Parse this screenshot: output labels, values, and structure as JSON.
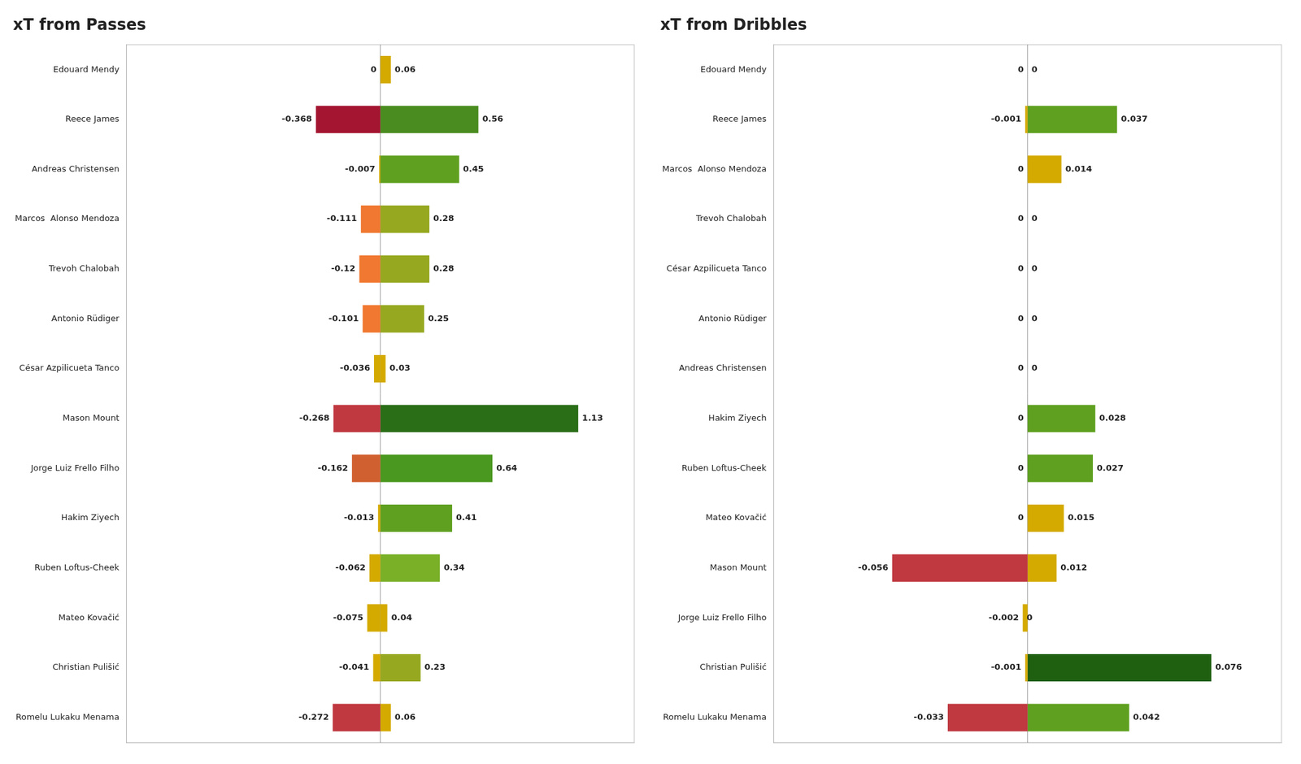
{
  "chart_data": [
    {
      "type": "bar",
      "title": "xT from Passes",
      "orientation": "horizontal",
      "stacked": true,
      "grid": false,
      "data_labels": true,
      "tick_labels": "y",
      "categories": [
        "Edouard Mendy",
        "Reece James",
        "Andreas Christensen",
        "Marcos  Alonso Mendoza",
        "Trevoh Chalobah",
        "Antonio Rüdiger",
        "César Azpilicueta Tanco",
        "Mason Mount",
        "Jorge Luiz Frello Filho",
        "Hakim Ziyech",
        "Ruben Loftus-Cheek",
        "Mateo Kovačić",
        "Christian Pulišić",
        "Romelu Lukaku Menama"
      ],
      "series": [
        {
          "values": [
            0,
            -0.368,
            -0.007,
            -0.111,
            -0.12,
            -0.101,
            -0.036,
            -0.268,
            -0.162,
            -0.013,
            -0.062,
            -0.075,
            -0.041,
            -0.272
          ],
          "colors": [
            "#d4aa00",
            "#a31530",
            "#d4aa00",
            "#f07830",
            "#f07830",
            "#f07830",
            "#d4aa00",
            "#c03840",
            "#d06030",
            "#d4aa00",
            "#d4aa00",
            "#d4aa00",
            "#d4aa00",
            "#c03840"
          ]
        },
        {
          "values": [
            0.06,
            0.56,
            0.45,
            0.28,
            0.28,
            0.25,
            0.03,
            1.13,
            0.64,
            0.41,
            0.34,
            0.04,
            0.23,
            0.06
          ],
          "colors": [
            "#d4aa00",
            "#4a8c20",
            "#5fa020",
            "#96a820",
            "#96a820",
            "#96a820",
            "#d4aa00",
            "#2a6e18",
            "#4a9820",
            "#5fa020",
            "#7ab028",
            "#d4aa00",
            "#96a820",
            "#d4aa00"
          ]
        }
      ],
      "xlim": [
        -1.45,
        1.45
      ],
      "xticks": []
    },
    {
      "type": "bar",
      "title": "xT from Dribbles",
      "orientation": "horizontal",
      "stacked": true,
      "grid": false,
      "data_labels": true,
      "tick_labels": "y",
      "categories": [
        "Edouard Mendy",
        "Reece James",
        "Marcos  Alonso Mendoza",
        "Trevoh Chalobah",
        "César Azpilicueta Tanco",
        "Antonio Rüdiger",
        "Andreas Christensen",
        "Hakim Ziyech",
        "Ruben Loftus-Cheek",
        "Mateo Kovačić",
        "Mason Mount",
        "Jorge Luiz Frello Filho",
        "Christian Pulišić",
        "Romelu Lukaku Menama"
      ],
      "series": [
        {
          "values": [
            0,
            -0.001,
            0,
            0,
            0,
            0,
            0,
            0,
            0,
            0,
            -0.056,
            -0.002,
            -0.001,
            -0.033
          ],
          "colors": [
            "#dddddd",
            "#d4aa00",
            "#dddddd",
            "#dddddd",
            "#dddddd",
            "#dddddd",
            "#dddddd",
            "#dddddd",
            "#dddddd",
            "#dddddd",
            "#c03840",
            "#d4aa00",
            "#d4aa00",
            "#c03840"
          ]
        },
        {
          "values": [
            0,
            0.037,
            0.014,
            0,
            0,
            0,
            0,
            0.028,
            0.027,
            0.015,
            0.012,
            0,
            0.076,
            0.042
          ],
          "colors": [
            "#dddddd",
            "#5fa020",
            "#d4aa00",
            "#dddddd",
            "#dddddd",
            "#dddddd",
            "#dddddd",
            "#5fa020",
            "#5fa020",
            "#d4aa00",
            "#d4aa00",
            "#dddddd",
            "#1e6010",
            "#5fa020"
          ]
        }
      ],
      "xlim": [
        -0.105,
        0.105
      ],
      "xticks": []
    }
  ]
}
